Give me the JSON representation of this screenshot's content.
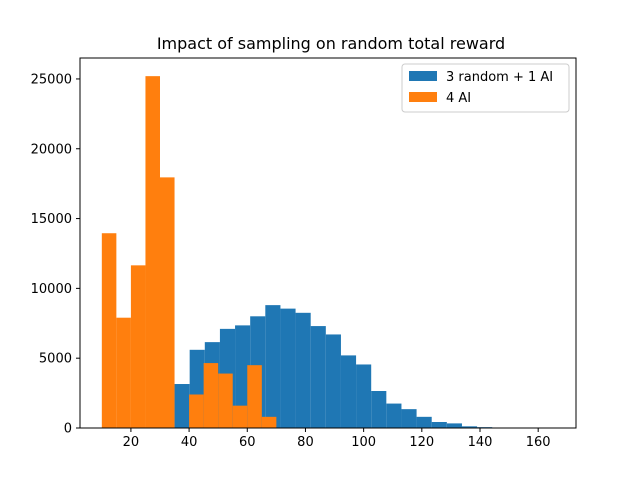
{
  "chart_data": {
    "type": "bar",
    "title": "Impact of sampling on random total reward",
    "xlabel": "",
    "ylabel": "",
    "xlim": [
      2.5,
      173
    ],
    "ylim": [
      0,
      26500
    ],
    "xticks": [
      20,
      40,
      60,
      80,
      100,
      120,
      140,
      160
    ],
    "yticks": [
      0,
      5000,
      10000,
      15000,
      20000,
      25000
    ],
    "legend_position": "top-right",
    "grid": false,
    "series": [
      {
        "name": "3 random + 1 AI",
        "color": "#1f77b4",
        "bin_edges": [
          35,
          40.2,
          45.4,
          50.6,
          55.8,
          61,
          66.2,
          71.4,
          76.6,
          81.8,
          87,
          92.2,
          97.4,
          102.6,
          107.8,
          113,
          118.2,
          123.4,
          128.6,
          133.8,
          139,
          144.2,
          149.4,
          154.6,
          159.8,
          165
        ],
        "counts": [
          3150,
          5600,
          6150,
          7100,
          7350,
          8000,
          8800,
          8550,
          8250,
          7300,
          6700,
          5200,
          4550,
          2650,
          1750,
          1350,
          800,
          430,
          330,
          120,
          60,
          15,
          5,
          2,
          1
        ]
      },
      {
        "name": "4 AI",
        "color": "#ff7f0e",
        "bin_edges": [
          10,
          15,
          20,
          25,
          30,
          35,
          40,
          45,
          50,
          55,
          60,
          65,
          70
        ],
        "counts": [
          13950,
          7900,
          11650,
          25200,
          17950,
          0,
          2400,
          4650,
          3900,
          1600,
          4500,
          800
        ]
      }
    ]
  }
}
